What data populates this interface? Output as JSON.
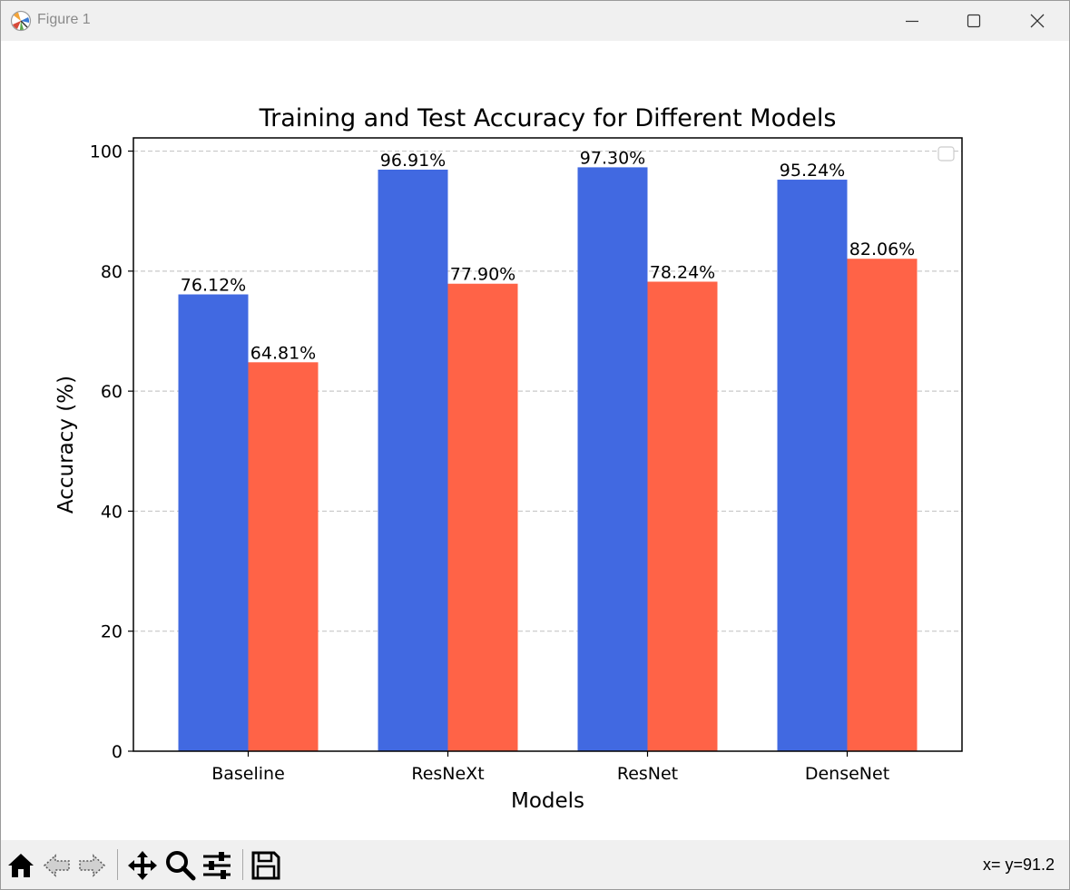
{
  "window": {
    "title": "Figure 1"
  },
  "toolbar": {
    "tools": [
      {
        "name": "home-icon"
      },
      {
        "name": "back-icon"
      },
      {
        "name": "forward-icon"
      },
      {
        "name": "pan-icon"
      },
      {
        "name": "zoom-icon"
      },
      {
        "name": "configure-subplots-icon"
      },
      {
        "name": "save-icon"
      }
    ],
    "coords": "x= y=91.2"
  },
  "chart_data": {
    "type": "bar",
    "title": "Training and Test Accuracy for Different Models",
    "xlabel": "Models",
    "ylabel": "Accuracy (%)",
    "categories": [
      "Baseline",
      "ResNeXt",
      "ResNet",
      "DenseNet"
    ],
    "series": [
      {
        "color": "#4169e1",
        "values": [
          76.12,
          96.91,
          97.3,
          95.24
        ],
        "labels": [
          "76.12%",
          "96.91%",
          "97.30%",
          "95.24%"
        ]
      },
      {
        "color": "#ff6347",
        "values": [
          64.81,
          77.9,
          78.24,
          82.06
        ],
        "labels": [
          "64.81%",
          "77.90%",
          "78.24%",
          "82.06%"
        ]
      }
    ],
    "ylim": [
      0,
      102.2
    ],
    "yticks": [
      0,
      20,
      40,
      60,
      80,
      100
    ],
    "grid": "y-dashed",
    "legend": "top-right, empty"
  }
}
